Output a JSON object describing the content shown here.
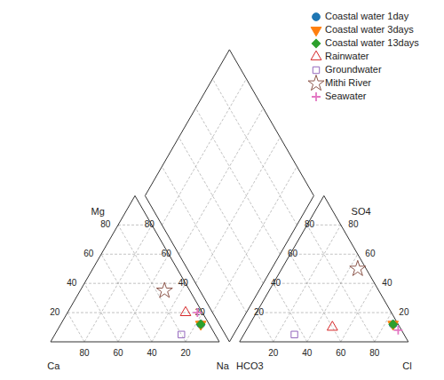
{
  "chart_data": {
    "type": "piper",
    "components": [
      "Ca",
      "Mg",
      "Na",
      "HCO3",
      "SO4",
      "Cl"
    ],
    "lim": [
      0,
      100
    ],
    "ticks": [
      20,
      40,
      60,
      80
    ],
    "series": [
      {
        "name": "Coastal water 1day",
        "marker": "circle",
        "values": [
          5,
          12,
          83,
          3,
          12,
          85
        ]
      },
      {
        "name": "Coastal water 3days",
        "marker": "triangle-down",
        "values": [
          5,
          12,
          83,
          3,
          12,
          85
        ]
      },
      {
        "name": "Coastal water 13days",
        "marker": "diamond",
        "values": [
          5,
          12,
          83,
          3,
          12,
          85
        ]
      },
      {
        "name": "Rainwater",
        "marker": "triangle-up-open",
        "values": [
          10,
          20,
          70,
          40,
          10,
          50
        ]
      },
      {
        "name": "Groundwater",
        "marker": "square-open",
        "values": [
          20,
          5,
          75,
          65,
          5,
          30
        ]
      },
      {
        "name": "Mithi River",
        "marker": "star-open",
        "values": [
          15,
          35,
          50,
          5,
          50,
          45
        ]
      },
      {
        "name": "Seawater",
        "marker": "plus",
        "values": [
          3,
          20,
          77,
          2,
          8,
          90
        ]
      }
    ],
    "legend": "upper right"
  }
}
